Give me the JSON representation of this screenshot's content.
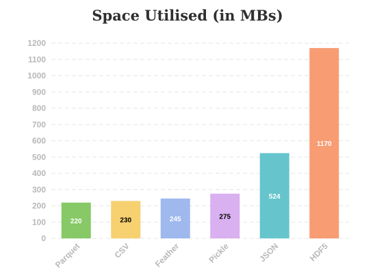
{
  "chart_data": {
    "type": "bar",
    "title": "Space Utilised (in MBs)",
    "categories": [
      "Parquet",
      "CSV",
      "Feather",
      "Pickle",
      "JSON",
      "HDF5"
    ],
    "values": [
      220,
      230,
      245,
      275,
      524,
      1170
    ],
    "data_labels": [
      "220",
      "230",
      "245",
      "275",
      "524",
      "1170"
    ],
    "colors": [
      "#86c966",
      "#f7d070",
      "#9fb8ee",
      "#d9b0f0",
      "#66c5cc",
      "#f89c74"
    ],
    "label_colors": [
      "#ffffff",
      "#000000",
      "#ffffff",
      "#000000",
      "#ffffff",
      "#ffffff"
    ],
    "y_ticks": [
      "0",
      "100",
      "200",
      "300",
      "400",
      "500",
      "600",
      "700",
      "800",
      "900",
      "1000",
      "1100",
      "1200"
    ],
    "ylim": [
      0,
      1200
    ],
    "grid": true,
    "xlabel": "",
    "ylabel": ""
  }
}
